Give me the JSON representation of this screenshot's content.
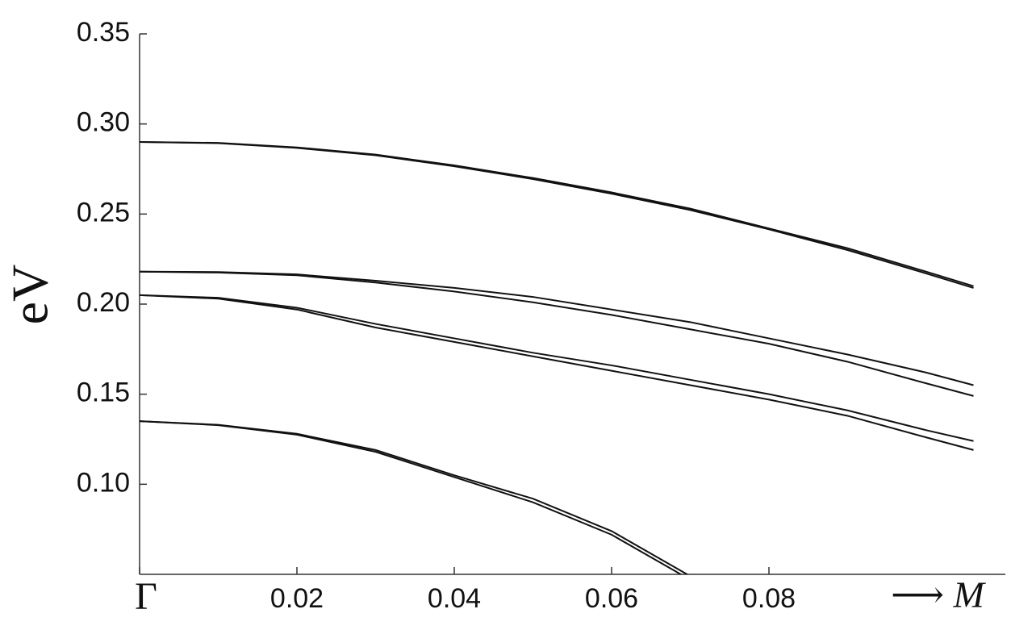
{
  "chart_data": {
    "type": "line",
    "ylabel": "eV",
    "annotation": "⟶ M",
    "x": [
      0,
      0.01,
      0.02,
      0.03,
      0.04,
      0.05,
      0.06,
      0.07,
      0.08,
      0.09,
      0.1,
      0.106
    ],
    "series": [
      {
        "color": "#111111",
        "values": [
          0.29,
          0.2895,
          0.287,
          0.283,
          0.277,
          0.27,
          0.262,
          0.253,
          0.242,
          0.231,
          0.218,
          0.21
        ]
      },
      {
        "color": "#111111",
        "values": [
          0.29,
          0.2893,
          0.2867,
          0.2826,
          0.2765,
          0.2694,
          0.2613,
          0.2522,
          0.2415,
          0.23,
          0.217,
          0.209
        ]
      },
      {
        "color": "#111111",
        "values": [
          0.218,
          0.2178,
          0.2165,
          0.213,
          0.209,
          0.204,
          0.197,
          0.19,
          0.181,
          0.172,
          0.162,
          0.155
        ]
      },
      {
        "color": "#111111",
        "values": [
          0.218,
          0.2175,
          0.216,
          0.212,
          0.207,
          0.201,
          0.194,
          0.186,
          0.178,
          0.168,
          0.156,
          0.149
        ]
      },
      {
        "color": "#111111",
        "values": [
          0.205,
          0.2035,
          0.198,
          0.189,
          0.181,
          0.173,
          0.166,
          0.158,
          0.15,
          0.141,
          0.13,
          0.124
        ]
      },
      {
        "color": "#111111",
        "values": [
          0.205,
          0.203,
          0.197,
          0.187,
          0.179,
          0.171,
          0.163,
          0.155,
          0.147,
          0.138,
          0.126,
          0.119
        ]
      },
      {
        "color": "#111111",
        "values": [
          0.135,
          0.133,
          0.128,
          0.119,
          0.105,
          0.092,
          0.074,
          0.049,
          null,
          null,
          null,
          null
        ]
      },
      {
        "color": "#111111",
        "values": [
          0.135,
          0.1328,
          0.1275,
          0.118,
          0.104,
          0.09,
          0.072,
          0.047,
          null,
          null,
          null,
          null
        ]
      }
    ],
    "xlim": [
      0,
      0.11
    ],
    "ylim": [
      0.05,
      0.35
    ],
    "xticks": [
      {
        "value": 0,
        "label": "Γ"
      },
      0.02,
      0.04,
      0.06,
      0.08
    ],
    "yticks": [
      {
        "value": 0.1,
        "label": "0.10"
      },
      0.15,
      {
        "value": 0.2,
        "label": "0.20"
      },
      0.25,
      {
        "value": 0.3,
        "label": "0.30"
      },
      0.35
    ]
  }
}
